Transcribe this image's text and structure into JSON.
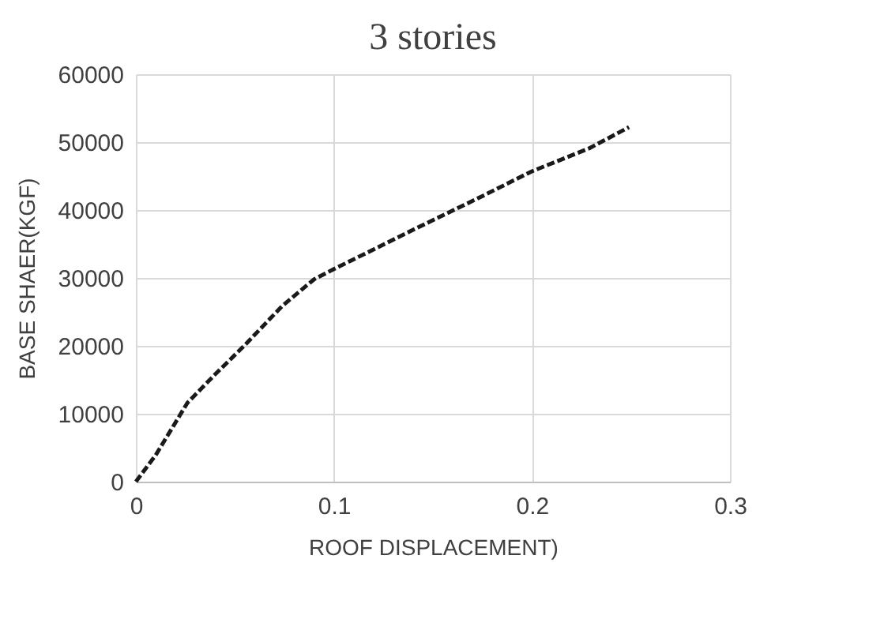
{
  "chart_data": {
    "type": "line",
    "title": "3 stories",
    "xlabel": "ROOF DISPLACEMENT)",
    "ylabel": "BASE SHAER(KGF)",
    "x": [
      0,
      0.01,
      0.026,
      0.039,
      0.055,
      0.074,
      0.09,
      0.1,
      0.138,
      0.176,
      0.2,
      0.229,
      0.249
    ],
    "series": [
      {
        "color": "#1a1a1a",
        "values": [
          0,
          3900,
          11600,
          15500,
          20100,
          25900,
          29800,
          31300,
          36800,
          42200,
          45700,
          49100,
          52200
        ]
      }
    ],
    "xlim": [
      0,
      0.3
    ],
    "xticks": [
      0,
      0.1,
      0.2,
      0.3
    ],
    "ylim": [
      0,
      60000
    ],
    "yticks": [
      0,
      10000,
      20000,
      30000,
      40000,
      50000,
      60000
    ],
    "grid": true,
    "line_style": "dashed"
  }
}
